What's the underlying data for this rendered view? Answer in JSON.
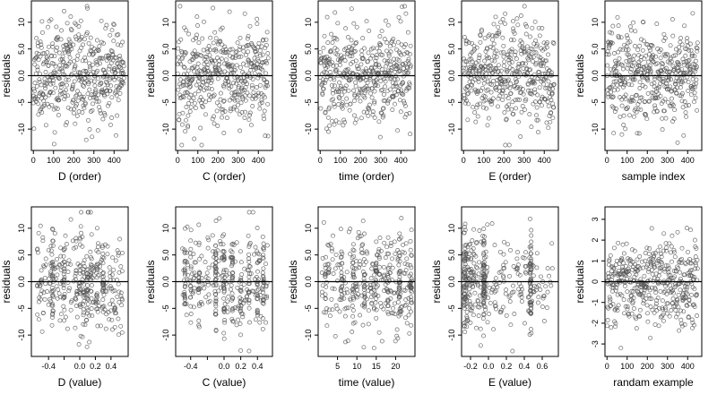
{
  "chart_data": [
    {
      "type": "scatter",
      "xlabel": "D (order)",
      "ylabel": "residuals",
      "xlim": [
        -10,
        470
      ],
      "ylim": [
        -14,
        14
      ],
      "x_ticks": [
        0,
        100,
        200,
        300,
        400
      ],
      "x_tick_labels": [
        "0",
        "100",
        "200",
        "300",
        "400"
      ],
      "y_ticks": [
        -10,
        -5,
        0,
        5,
        10
      ],
      "y_tick_labels": [
        "-10",
        "-5",
        "0.0",
        "5.0",
        "10"
      ],
      "reference_line": 0,
      "dist": {
        "kind": "index",
        "n": 450,
        "seed": 11,
        "sd": 4.5,
        "range": [
          -13,
          13
        ]
      }
    },
    {
      "type": "scatter",
      "xlabel": "C (order)",
      "ylabel": "residuals",
      "xlim": [
        -10,
        470
      ],
      "ylim": [
        -14,
        14
      ],
      "x_ticks": [
        0,
        100,
        200,
        300,
        400
      ],
      "x_tick_labels": [
        "0",
        "100",
        "200",
        "300",
        "400"
      ],
      "y_ticks": [
        -10,
        -5,
        0,
        5,
        10
      ],
      "y_tick_labels": [
        "-10",
        "-5",
        "0.0",
        "5.0",
        "10"
      ],
      "reference_line": 0,
      "dist": {
        "kind": "index",
        "n": 450,
        "seed": 22,
        "sd": 4.5,
        "range": [
          -13,
          13
        ]
      }
    },
    {
      "type": "scatter",
      "xlabel": "time (order)",
      "ylabel": "residuals",
      "xlim": [
        -10,
        470
      ],
      "ylim": [
        -14,
        14
      ],
      "x_ticks": [
        0,
        100,
        200,
        300,
        400
      ],
      "x_tick_labels": [
        "0",
        "100",
        "200",
        "300",
        "400"
      ],
      "y_ticks": [
        -10,
        -5,
        0,
        5,
        10
      ],
      "y_tick_labels": [
        "-10",
        "-5",
        "0.0",
        "5.0",
        "10"
      ],
      "reference_line": 0,
      "dist": {
        "kind": "index",
        "n": 450,
        "seed": 33,
        "sd": 4.5,
        "range": [
          -13,
          13
        ]
      }
    },
    {
      "type": "scatter",
      "xlabel": "E (order)",
      "ylabel": "residuals",
      "xlim": [
        -10,
        470
      ],
      "ylim": [
        -14,
        14
      ],
      "x_ticks": [
        0,
        100,
        200,
        300,
        400
      ],
      "x_tick_labels": [
        "0",
        "100",
        "200",
        "300",
        "400"
      ],
      "y_ticks": [
        -10,
        -5,
        0,
        5,
        10
      ],
      "y_tick_labels": [
        "-10",
        "-5",
        "0.0",
        "5.0",
        "10"
      ],
      "reference_line": 0,
      "dist": {
        "kind": "index",
        "n": 450,
        "seed": 44,
        "sd": 4.5,
        "range": [
          -13,
          13
        ]
      }
    },
    {
      "type": "scatter",
      "xlabel": "sample index",
      "ylabel": "residuals",
      "xlim": [
        -10,
        470
      ],
      "ylim": [
        -14,
        14
      ],
      "x_ticks": [
        0,
        100,
        200,
        300,
        400
      ],
      "x_tick_labels": [
        "0",
        "100",
        "200",
        "300",
        "400"
      ],
      "y_ticks": [
        -10,
        -5,
        0,
        5,
        10
      ],
      "y_tick_labels": [
        "-10",
        "-5",
        "0.0",
        "5.0",
        "10"
      ],
      "reference_line": 0,
      "dist": {
        "kind": "index",
        "n": 450,
        "seed": 55,
        "sd": 4.5,
        "range": [
          -13,
          13
        ]
      }
    },
    {
      "type": "scatter",
      "xlabel": "D (value)",
      "ylabel": "residuals",
      "xlim": [
        -0.62,
        0.62
      ],
      "ylim": [
        -14,
        14
      ],
      "x_ticks": [
        -0.4,
        -0.2,
        0,
        0.2,
        0.4
      ],
      "x_tick_labels": [
        "-0.4",
        "",
        "0.0",
        "0.2",
        "0.4"
      ],
      "y_ticks": [
        -10,
        -5,
        0,
        5,
        10
      ],
      "y_tick_labels": [
        "-10",
        "-5",
        "0.0",
        "5.0",
        "10"
      ],
      "reference_line": 0,
      "dist": {
        "kind": "grouped",
        "n": 400,
        "seed": 66,
        "sd": 4.5,
        "range": [
          -13,
          13
        ],
        "x_min": -0.55,
        "x_max": 0.55,
        "columns": [
          -0.35,
          -0.2,
          -0.05,
          0,
          0.05,
          0.1,
          0.15,
          0.22,
          0.3
        ],
        "column_fraction": 0.4,
        "jitter": 0.01
      }
    },
    {
      "type": "scatter",
      "xlabel": "C (value)",
      "ylabel": "residuals",
      "xlim": [
        -0.58,
        0.58
      ],
      "ylim": [
        -14,
        14
      ],
      "x_ticks": [
        -0.4,
        -0.2,
        0,
        0.2,
        0.4
      ],
      "x_tick_labels": [
        "-0.4",
        "",
        "0.0",
        "0.2",
        "0.4"
      ],
      "y_ticks": [
        -10,
        -5,
        0,
        5,
        10
      ],
      "y_tick_labels": [
        "-10",
        "-5",
        "0.0",
        "5.0",
        "10"
      ],
      "reference_line": 0,
      "dist": {
        "kind": "grouped",
        "n": 400,
        "seed": 77,
        "sd": 4.5,
        "range": [
          -13,
          13
        ],
        "x_min": -0.52,
        "x_max": 0.52,
        "columns": [
          -0.47,
          -0.4,
          -0.3,
          -0.1,
          0,
          0.1,
          0.2,
          0.3,
          0.4,
          0.47
        ],
        "column_fraction": 0.55,
        "jitter": 0.006
      }
    },
    {
      "type": "scatter",
      "xlabel": "time (value)",
      "ylabel": "residuals",
      "xlim": [
        0,
        25
      ],
      "ylim": [
        -14,
        14
      ],
      "x_ticks": [
        5,
        10,
        15,
        20
      ],
      "x_tick_labels": [
        "5",
        "10",
        "15",
        "20"
      ],
      "y_ticks": [
        -10,
        -5,
        0,
        5,
        10
      ],
      "y_tick_labels": [
        "-10",
        "-5",
        "0.0",
        "5.0",
        "10"
      ],
      "reference_line": 0,
      "dist": {
        "kind": "grouped",
        "n": 400,
        "seed": 88,
        "sd": 4.5,
        "range": [
          -13,
          13
        ],
        "x_min": 1,
        "x_max": 24,
        "columns": [
          6,
          9,
          12,
          15,
          18,
          21,
          24
        ],
        "column_fraction": 0.35,
        "jitter": 0.2
      }
    },
    {
      "type": "scatter",
      "xlabel": "E (value)",
      "ylabel": "residuals",
      "xlim": [
        -0.3,
        0.78
      ],
      "ylim": [
        -14,
        14
      ],
      "x_ticks": [
        -0.2,
        0,
        0.2,
        0.4,
        0.6
      ],
      "x_tick_labels": [
        "-0.2",
        "0.0",
        "0.2",
        "0.4",
        "0.6"
      ],
      "y_ticks": [
        -10,
        -5,
        0,
        5,
        10
      ],
      "y_tick_labels": [
        "-10",
        "-5",
        "0.0",
        "5.0",
        "10"
      ],
      "reference_line": 0,
      "dist": {
        "kind": "skew",
        "n": 400,
        "seed": 99,
        "sd": 4.5,
        "range": [
          -13,
          13
        ],
        "x_min": -0.27,
        "x_max": 0.72,
        "columns": [
          -0.05,
          0.47
        ],
        "column_fraction": 0.3,
        "jitter": 0.01
      }
    },
    {
      "type": "scatter",
      "xlabel": "randam example",
      "ylabel": "residuals",
      "xlim": [
        -10,
        470
      ],
      "ylim": [
        -3.6,
        3.6
      ],
      "x_ticks": [
        0,
        100,
        200,
        300,
        400
      ],
      "x_tick_labels": [
        "0",
        "100",
        "200",
        "300",
        "400"
      ],
      "y_ticks": [
        -3,
        -2,
        -1,
        0,
        1,
        2,
        3
      ],
      "y_tick_labels": [
        "-3",
        "-2",
        "-1",
        "0",
        "1",
        "2",
        "3"
      ],
      "reference_line": 0,
      "dist": {
        "kind": "index",
        "n": 450,
        "seed": 111,
        "sd": 1,
        "range": [
          -3.2,
          3.2
        ]
      }
    }
  ]
}
